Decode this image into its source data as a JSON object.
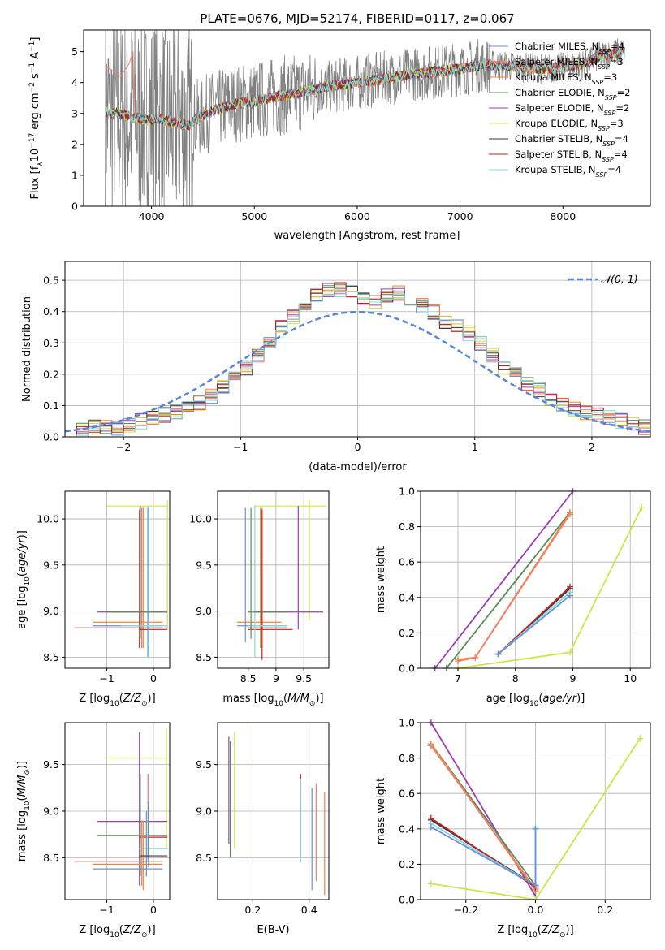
{
  "figure_title": "PLATE=0676, MJD=52174, FIBERID=0117, z=0.067",
  "colors": {
    "Chabrier MILES": "#6b8fd6",
    "Salpeter MILES": "#f08070",
    "Kroupa MILES": "#e88a30",
    "Chabrier ELODIE": "#5a8a5a",
    "Salpeter ELODIE": "#9a3fb0",
    "Kroupa ELODIE": "#c8e84a",
    "Chabrier STELIB": "#3a3a3a",
    "Salpeter STELIB": "#c02020",
    "Kroupa STELIB": "#86d8e0",
    "data": "#808080",
    "normal": "#5b86d6"
  },
  "chart_data": [
    {
      "id": "spectrum",
      "type": "line",
      "xlabel": "wavelength [Angstrom, rest frame]",
      "ylabel": "Flux [f_λ 10^-17 erg cm^-2 s^-1 A^-1]",
      "xlim": [
        3340,
        8850
      ],
      "ylim": [
        0,
        5.7
      ],
      "xticks": [
        4000,
        5000,
        6000,
        7000,
        8000
      ],
      "yticks": [
        0,
        1,
        2,
        3,
        4,
        5
      ],
      "grid": false,
      "legend_position": "top-right",
      "legend": [
        {
          "model": "Chabrier MILES",
          "label": "Chabrier MILES, N",
          "sub": "SSP",
          "suffix": "=4"
        },
        {
          "model": "Salpeter MILES",
          "label": "Salpeter MILES, N",
          "sub": "SSP",
          "suffix": "=3"
        },
        {
          "model": "Kroupa MILES",
          "label": "Kroupa MILES, N",
          "sub": "SSP",
          "suffix": "=3"
        },
        {
          "model": "Chabrier ELODIE",
          "label": "Chabrier ELODIE, N",
          "sub": "SSP",
          "suffix": "=2"
        },
        {
          "model": "Salpeter ELODIE",
          "label": "Salpeter ELODIE, N",
          "sub": "SSP",
          "suffix": "=2"
        },
        {
          "model": "Kroupa ELODIE",
          "label": "Kroupa ELODIE, N",
          "sub": "SSP",
          "suffix": "=3"
        },
        {
          "model": "Chabrier STELIB",
          "label": "Chabrier STELIB, N",
          "sub": "SSP",
          "suffix": "=4"
        },
        {
          "model": "Salpeter STELIB",
          "label": "Salpeter STELIB, N",
          "sub": "SSP",
          "suffix": "=4"
        },
        {
          "model": "Kroupa STELIB",
          "label": "Kroupa STELIB, N",
          "sub": "SSP",
          "suffix": "=4"
        }
      ],
      "data_range": [
        3550,
        8600
      ],
      "continuum": {
        "x": [
          3550,
          3650,
          3750,
          3850,
          3950,
          4050,
          4150,
          4250,
          4350,
          4450,
          4600,
          4800,
          5000,
          5200,
          5400,
          5600,
          5800,
          6000,
          6200,
          6400,
          6600,
          6800,
          7000,
          7200,
          7400,
          7600,
          7800,
          8000,
          8200,
          8400,
          8600
        ],
        "y": [
          3.05,
          3.0,
          2.95,
          2.85,
          2.8,
          2.85,
          2.75,
          2.7,
          2.6,
          2.85,
          3.1,
          3.3,
          3.4,
          3.55,
          3.65,
          3.8,
          3.9,
          4.0,
          4.1,
          4.2,
          4.3,
          4.35,
          4.45,
          4.55,
          4.55,
          4.5,
          4.45,
          4.5,
          4.6,
          4.9,
          5.0
        ]
      },
      "model_redbump": {
        "model": "Salpeter MILES",
        "x": [
          3550,
          3700,
          3780,
          3820
        ],
        "y": [
          4.55,
          4.2,
          4.6,
          5.0
        ]
      }
    },
    {
      "id": "residuals",
      "type": "bar",
      "xlabel": "(data-model)/error",
      "ylabel": "Normed distribution",
      "xlim": [
        -2.5,
        2.5
      ],
      "ylim": [
        0,
        0.56
      ],
      "xticks": [
        -2,
        -1,
        0,
        1,
        2
      ],
      "xtick_labels": [
        "−2",
        "−1",
        "0",
        "1",
        "2"
      ],
      "yticks": [
        0.0,
        0.1,
        0.2,
        0.3,
        0.4,
        0.5
      ],
      "grid": true,
      "legend_position": "top-right",
      "legend": "𝒩(0, 1)",
      "bin_edges_start": -2.5,
      "bin_width": 0.1,
      "values": [
        0.02,
        0.02,
        0.03,
        0.03,
        0.03,
        0.04,
        0.05,
        0.06,
        0.07,
        0.08,
        0.09,
        0.11,
        0.13,
        0.16,
        0.19,
        0.22,
        0.26,
        0.3,
        0.35,
        0.38,
        0.42,
        0.45,
        0.47,
        0.47,
        0.46,
        0.44,
        0.43,
        0.45,
        0.46,
        0.44,
        0.42,
        0.4,
        0.37,
        0.35,
        0.33,
        0.3,
        0.26,
        0.22,
        0.2,
        0.17,
        0.15,
        0.12,
        0.1,
        0.09,
        0.08,
        0.07,
        0.06,
        0.05,
        0.04,
        0.03
      ],
      "normal_curve": "N(0,1)"
    },
    {
      "id": "Z-age",
      "type": "scatter",
      "xlabel": "Z [log10(Z/Z⊙)]",
      "ylabel": "age  [log10(age/yr)]",
      "xlim": [
        -1.9,
        0.35
      ],
      "ylim": [
        8.38,
        10.3
      ],
      "xticks": [
        -1,
        0
      ],
      "xtick_labels": [
        "−1",
        "0"
      ],
      "yticks": [
        8.5,
        9.0,
        9.5,
        10.0
      ],
      "grid": true,
      "crosses": [
        {
          "model": "Kroupa ELODIE",
          "x": [
            -1.0,
            0.3
          ],
          "y": [
            10.14,
            10.14
          ],
          "vx": 0.3,
          "vy": [
            8.8,
            10.2
          ]
        },
        {
          "model": "Salpeter ELODIE",
          "x": [
            -1.2,
            0.3
          ],
          "y": [
            8.99,
            8.99
          ],
          "vx": -0.28,
          "vy": [
            8.7,
            10.14
          ]
        },
        {
          "model": "Kroupa MILES",
          "x": [
            -1.3,
            0.2
          ],
          "y": [
            8.88,
            8.88
          ],
          "vx": -0.22,
          "vy": [
            8.6,
            10.12
          ]
        },
        {
          "model": "Chabrier MILES",
          "x": [
            -1.3,
            0.2
          ],
          "y": [
            8.84,
            8.84
          ],
          "vx": -0.12,
          "vy": [
            8.5,
            10.12
          ]
        },
        {
          "model": "Salpeter MILES",
          "x": [
            -1.7,
            0.2
          ],
          "y": [
            8.82,
            8.82
          ],
          "vx": -0.25,
          "vy": [
            8.6,
            10.12
          ]
        },
        {
          "model": "Salpeter STELIB",
          "x": [
            -0.3,
            0.3
          ],
          "y": [
            8.8,
            8.8
          ],
          "vx": -0.3,
          "vy": [
            8.6,
            10.1
          ]
        },
        {
          "model": "Kroupa STELIB",
          "x": [
            -0.7,
            0.3
          ],
          "y": [
            8.84,
            8.84
          ],
          "vx": -0.1,
          "vy": [
            8.47,
            10.14
          ]
        },
        {
          "model": "Chabrier ELODIE",
          "x": [
            -1.0,
            0.3
          ],
          "y": [
            8.99,
            8.99
          ],
          "vx": -0.29,
          "vy": [
            8.7,
            10.12
          ]
        }
      ]
    },
    {
      "id": "mass-age",
      "type": "scatter",
      "xlabel": "mass [log10(M/M⊙)]",
      "ylabel": "",
      "xlim": [
        7.95,
        9.95
      ],
      "ylim": [
        8.38,
        10.3
      ],
      "xticks": [
        8.5,
        9.0,
        9.5
      ],
      "yticks": [
        8.5,
        9.0,
        9.5,
        10.0
      ],
      "grid": true,
      "crosses": [
        {
          "model": "Kroupa ELODIE",
          "x": [
            8.6,
            9.9
          ],
          "y": [
            10.14,
            10.14
          ],
          "vx": 9.6,
          "vy": [
            8.9,
            10.2
          ]
        },
        {
          "model": "Salpeter ELODIE",
          "x": [
            8.6,
            9.85
          ],
          "y": [
            8.99,
            8.99
          ],
          "vx": 9.4,
          "vy": [
            8.8,
            10.14
          ]
        },
        {
          "model": "Kroupa MILES",
          "x": [
            8.3,
            9.1
          ],
          "y": [
            8.88,
            8.88
          ],
          "vx": 8.72,
          "vy": [
            8.6,
            10.12
          ]
        },
        {
          "model": "Chabrier MILES",
          "x": [
            8.3,
            9.2
          ],
          "y": [
            8.84,
            8.84
          ],
          "vx": 8.45,
          "vy": [
            8.66,
            10.12
          ]
        },
        {
          "model": "Salpeter MILES",
          "x": [
            8.5,
            9.2
          ],
          "y": [
            8.82,
            8.82
          ],
          "vx": 8.75,
          "vy": [
            8.6,
            10.12
          ]
        },
        {
          "model": "Salpeter STELIB",
          "x": [
            8.5,
            9.3
          ],
          "y": [
            8.8,
            8.8
          ],
          "vx": 8.75,
          "vy": [
            8.47,
            10.1
          ]
        },
        {
          "model": "Kroupa STELIB",
          "x": [
            8.5,
            9.2
          ],
          "y": [
            8.84,
            8.84
          ],
          "vx": 8.62,
          "vy": [
            8.5,
            10.14
          ]
        },
        {
          "model": "Chabrier ELODIE",
          "x": [
            8.5,
            9.2
          ],
          "y": [
            8.99,
            8.99
          ],
          "vx": 8.55,
          "vy": [
            8.7,
            10.12
          ]
        }
      ]
    },
    {
      "id": "age-weight",
      "type": "line",
      "xlabel": "age  [log10(age/yr)]",
      "ylabel": "mass weight",
      "xlim": [
        6.35,
        10.35
      ],
      "ylim": [
        0,
        1.0
      ],
      "xticks": [
        7,
        8,
        9,
        10
      ],
      "yticks": [
        0.0,
        0.2,
        0.4,
        0.6,
        0.8,
        1.0
      ],
      "grid": true,
      "series": [
        {
          "model": "Salpeter ELODIE",
          "x": [
            6.6,
            9.0
          ],
          "y": [
            0.0,
            1.0
          ]
        },
        {
          "model": "Chabrier ELODIE",
          "x": [
            6.8,
            8.95
          ],
          "y": [
            0.0,
            0.88
          ]
        },
        {
          "model": "Kroupa MILES",
          "x": [
            7.0,
            7.3,
            8.95
          ],
          "y": [
            0.05,
            0.06,
            0.88
          ]
        },
        {
          "model": "Salpeter MILES",
          "x": [
            7.0,
            7.3,
            8.95
          ],
          "y": [
            0.04,
            0.06,
            0.87
          ]
        },
        {
          "model": "Kroupa ELODIE",
          "x": [
            7.0,
            8.95,
            10.2
          ],
          "y": [
            0.0,
            0.09,
            0.91
          ]
        },
        {
          "model": "Chabrier STELIB",
          "x": [
            7.7,
            8.95
          ],
          "y": [
            0.08,
            0.45
          ]
        },
        {
          "model": "Salpeter STELIB",
          "x": [
            7.7,
            8.95
          ],
          "y": [
            0.08,
            0.46
          ]
        },
        {
          "model": "Kroupa STELIB",
          "x": [
            7.7,
            8.95
          ],
          "y": [
            0.08,
            0.43
          ]
        },
        {
          "model": "Chabrier MILES",
          "x": [
            7.7,
            8.95
          ],
          "y": [
            0.08,
            0.41
          ]
        }
      ]
    },
    {
      "id": "Z-mass",
      "type": "scatter",
      "xlabel": "Z [log10(Z/Z⊙)]",
      "ylabel": "mass [log10(M/M⊙)]",
      "xlim": [
        -1.9,
        0.35
      ],
      "ylim": [
        8.05,
        9.95
      ],
      "xticks": [
        -1,
        0
      ],
      "xtick_labels": [
        "−1",
        "0"
      ],
      "yticks": [
        8.5,
        9.0,
        9.5
      ],
      "grid": true,
      "crosses": [
        {
          "model": "Kroupa ELODIE",
          "x": [
            -1.0,
            0.3
          ],
          "y": [
            9.57,
            9.57
          ],
          "vx": 0.28,
          "vy": [
            8.6,
            9.9
          ]
        },
        {
          "model": "Salpeter ELODIE",
          "x": [
            -1.2,
            0.3
          ],
          "y": [
            8.89,
            8.89
          ],
          "vx": -0.3,
          "vy": [
            8.2,
            9.85
          ]
        },
        {
          "model": "Chabrier ELODIE",
          "x": [
            -1.2,
            0.3
          ],
          "y": [
            8.74,
            8.74
          ],
          "vx": -0.28,
          "vy": [
            8.3,
            9.4
          ]
        },
        {
          "model": "Salpeter STELIB",
          "x": [
            -0.3,
            0.3
          ],
          "y": [
            8.72,
            8.72
          ],
          "vx": -0.1,
          "vy": [
            8.5,
            9.4
          ]
        },
        {
          "model": "Kroupa STELIB",
          "x": [
            -0.3,
            0.3
          ],
          "y": [
            8.6,
            8.6
          ],
          "vx": -0.12,
          "vy": [
            8.47,
            9.4
          ]
        },
        {
          "model": "Salpeter MILES",
          "x": [
            -1.7,
            0.2
          ],
          "y": [
            8.46,
            8.46
          ],
          "vx": -0.25,
          "vy": [
            8.2,
            8.9
          ]
        },
        {
          "model": "Kroupa MILES",
          "x": [
            -1.3,
            0.2
          ],
          "y": [
            8.43,
            8.43
          ],
          "vx": -0.22,
          "vy": [
            8.15,
            8.9
          ]
        },
        {
          "model": "Chabrier MILES",
          "x": [
            -1.3,
            0.2
          ],
          "y": [
            8.38,
            8.38
          ],
          "vx": -0.15,
          "vy": [
            8.3,
            9.0
          ]
        },
        {
          "model": "Chabrier STELIB",
          "x": [
            -0.3,
            0.3
          ],
          "y": [
            8.52,
            8.52
          ],
          "vx": -0.1,
          "vy": [
            8.4,
            9.1
          ]
        }
      ]
    },
    {
      "id": "EBV-mass",
      "type": "scatter",
      "xlabel": "E(B-V)",
      "ylabel": "",
      "xlim": [
        0.075,
        0.47
      ],
      "ylim": [
        8.05,
        9.95
      ],
      "xticks": [
        0.2,
        0.4
      ],
      "yticks": [
        8.5,
        9.0,
        9.5
      ],
      "grid": true,
      "verticals": [
        {
          "model": "Salpeter ELODIE",
          "x": 0.115,
          "y": [
            8.65,
            9.8
          ]
        },
        {
          "model": "Chabrier ELODIE",
          "x": 0.12,
          "y": [
            8.5,
            9.75
          ]
        },
        {
          "model": "Kroupa ELODIE",
          "x": 0.135,
          "y": [
            8.6,
            9.85
          ]
        },
        {
          "model": "Salpeter STELIB",
          "x": 0.37,
          "y": [
            8.5,
            9.4
          ]
        },
        {
          "model": "Kroupa STELIB",
          "x": 0.37,
          "y": [
            8.45,
            9.35
          ]
        },
        {
          "model": "Chabrier MILES",
          "x": 0.41,
          "y": [
            8.15,
            9.25
          ]
        },
        {
          "model": "Salpeter MILES",
          "x": 0.425,
          "y": [
            8.25,
            9.3
          ]
        },
        {
          "model": "Kroupa MILES",
          "x": 0.455,
          "y": [
            8.1,
            9.2
          ]
        }
      ]
    },
    {
      "id": "Z-weight",
      "type": "line",
      "xlabel": "Z [log10(Z/Z⊙)]",
      "ylabel": "mass weight",
      "xlim": [
        -0.33,
        0.33
      ],
      "ylim": [
        0,
        1.0
      ],
      "xticks": [
        -0.2,
        0.0,
        0.2
      ],
      "xtick_labels": [
        "−0.2",
        "0.0",
        "0.2"
      ],
      "yticks": [
        0.0,
        0.2,
        0.4,
        0.6,
        0.8,
        1.0
      ],
      "grid": true,
      "series": [
        {
          "model": "Salpeter ELODIE",
          "x": [
            -0.3,
            0.0
          ],
          "y": [
            1.0,
            0.02
          ]
        },
        {
          "model": "Chabrier ELODIE",
          "x": [
            -0.3,
            0.0
          ],
          "y": [
            0.88,
            0.08
          ]
        },
        {
          "model": "Kroupa MILES",
          "x": [
            -0.3,
            0.0
          ],
          "y": [
            0.88,
            0.05
          ]
        },
        {
          "model": "Salpeter MILES",
          "x": [
            -0.3,
            0.0
          ],
          "y": [
            0.87,
            0.06
          ]
        },
        {
          "model": "Chabrier STELIB",
          "x": [
            -0.3,
            0.0
          ],
          "y": [
            0.45,
            0.08
          ]
        },
        {
          "model": "Salpeter STELIB",
          "x": [
            -0.3,
            0.0
          ],
          "y": [
            0.46,
            0.07
          ]
        },
        {
          "model": "Kroupa STELIB",
          "x": [
            -0.3,
            0.0,
            0.0
          ],
          "y": [
            0.43,
            0.08,
            0.41
          ]
        },
        {
          "model": "Chabrier MILES",
          "x": [
            -0.3,
            0.0,
            0.0
          ],
          "y": [
            0.41,
            0.08,
            0.4
          ]
        },
        {
          "model": "Kroupa ELODIE",
          "x": [
            -0.3,
            0.0,
            0.3
          ],
          "y": [
            0.09,
            0.0,
            0.91
          ]
        }
      ]
    }
  ]
}
